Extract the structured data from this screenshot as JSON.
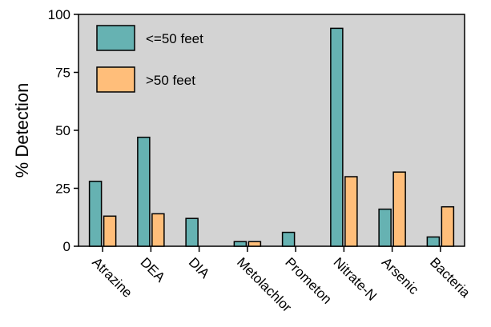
{
  "chart_data": {
    "type": "bar",
    "title": "",
    "xlabel": "",
    "ylabel": "% Detection",
    "ylim": [
      0,
      100
    ],
    "yticks": [
      0,
      25,
      50,
      75,
      100
    ],
    "grid": false,
    "legend_position": "top-left",
    "background_color": "#d3d3d3",
    "categories": [
      "Atrazine",
      "DEA",
      "DIA",
      "Metolachlor",
      "Prometon",
      "Nitrate-N",
      "Arsenic",
      "Bacteria"
    ],
    "series": [
      {
        "name": "<=50 feet",
        "color": "#66b2b2",
        "values": [
          28,
          47,
          12,
          2,
          6,
          94,
          16,
          4
        ]
      },
      {
        "name": ">50 feet",
        "color": "#ffbe7a",
        "values": [
          13,
          14,
          0,
          2,
          0,
          30,
          32,
          17
        ]
      }
    ]
  }
}
